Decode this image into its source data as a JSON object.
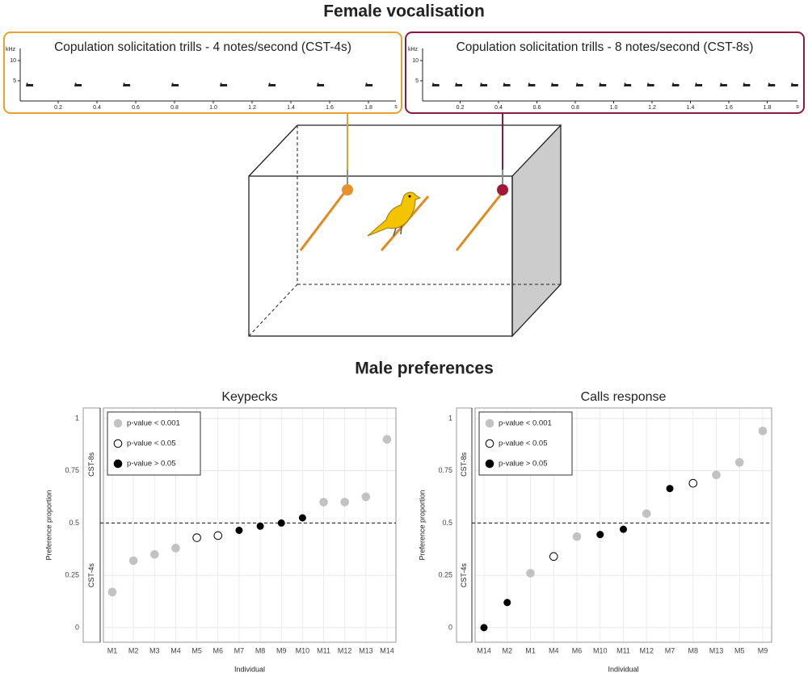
{
  "diagram": {
    "title": "Female vocalisation",
    "panels": [
      {
        "title": "Copulation solicitation trills - 4 notes/second (CST-4s)",
        "color": "#e8a030",
        "y_unit": "kHz",
        "x_unit": "s",
        "yticks": [
          5,
          10
        ],
        "xticks": [
          0.2,
          0.4,
          0.6,
          0.8,
          {
            "value": 1,
            "label": "1.0"
          },
          1.2,
          1.4,
          1.6,
          1.8
        ],
        "note_khz": 4,
        "notes": [
          0.05,
          0.3,
          0.55,
          0.8,
          1.05,
          1.3,
          1.55,
          1.8
        ]
      },
      {
        "title": "Copulation solicitation trills - 8 notes/second (CST-8s)",
        "color": "#8b1a3e",
        "y_unit": "kHz",
        "x_unit": "s",
        "yticks": [
          5,
          10
        ],
        "xticks": [
          0.2,
          0.4,
          0.6,
          0.8,
          {
            "value": 1,
            "label": "1.0"
          },
          1.2,
          1.4,
          1.6,
          1.8
        ],
        "note_khz": 4,
        "notes": [
          0.07,
          0.19,
          0.32,
          0.44,
          0.57,
          0.69,
          0.82,
          0.94,
          1.07,
          1.19,
          1.32,
          1.44,
          1.57,
          1.69,
          1.82,
          1.94
        ]
      }
    ]
  },
  "section_title": "Male preferences",
  "chart_data": [
    {
      "type": "scatter",
      "title": "Keypecks",
      "x_label": "Individual",
      "y_label": "Preference proportion",
      "strip_labels": [
        "CST-8s",
        "CST-4s"
      ],
      "hline": 0.5,
      "grid": true,
      "legend": "top-left",
      "categories": [
        "M1",
        "M2",
        "M3",
        "M4",
        "M5",
        "M6",
        "M7",
        "M8",
        "M9",
        "M10",
        "M11",
        "M12",
        "M13",
        "M14"
      ],
      "ylim": [
        -0.07,
        1.05
      ],
      "yticks": [
        0,
        0.25,
        0.5,
        0.75,
        1
      ],
      "series": [
        {
          "name": "p-value < 0.001",
          "color": "#c2c2c2",
          "fill": "#c2c2c2",
          "values": [
            0.17,
            0.32,
            0.35,
            0.38,
            null,
            null,
            null,
            null,
            null,
            null,
            0.6,
            0.6,
            0.625,
            0.9
          ]
        },
        {
          "name": "p-value < 0.05",
          "color": "#000000",
          "fill": "#ffffff",
          "values": [
            null,
            null,
            null,
            null,
            0.43,
            0.44,
            null,
            null,
            null,
            null,
            null,
            null,
            null,
            null
          ]
        },
        {
          "name": "p-value > 0.05",
          "color": "#000000",
          "fill": "#000000",
          "values": [
            null,
            null,
            null,
            null,
            null,
            null,
            0.465,
            0.485,
            0.5,
            0.525,
            null,
            null,
            null,
            null
          ]
        }
      ]
    },
    {
      "type": "scatter",
      "title": "Calls response",
      "x_label": "Individual",
      "y_label": "Preference proportion",
      "strip_labels": [
        "CST-8s",
        "CST-4s"
      ],
      "hline": 0.5,
      "grid": true,
      "legend": "top-left",
      "categories": [
        "M14",
        "M2",
        "M1",
        "M4",
        "M6",
        "M10",
        "M11",
        "M12",
        "M7",
        "M8",
        "M13",
        "M5",
        "M9"
      ],
      "ylim": [
        -0.07,
        1.05
      ],
      "yticks": [
        0,
        0.25,
        0.5,
        0.75,
        1
      ],
      "series": [
        {
          "name": "p-value < 0.001",
          "color": "#c2c2c2",
          "fill": "#c2c2c2",
          "values": [
            null,
            null,
            0.26,
            null,
            0.435,
            null,
            null,
            0.545,
            null,
            null,
            0.73,
            0.79,
            0.94
          ]
        },
        {
          "name": "p-value < 0.05",
          "color": "#000000",
          "fill": "#ffffff",
          "values": [
            null,
            null,
            null,
            0.34,
            null,
            null,
            null,
            null,
            null,
            0.69,
            null,
            null,
            null
          ]
        },
        {
          "name": "p-value > 0.05",
          "color": "#000000",
          "fill": "#000000",
          "values": [
            0.0,
            0.12,
            null,
            null,
            null,
            0.445,
            0.47,
            null,
            0.665,
            null,
            null,
            null,
            null
          ]
        }
      ]
    }
  ]
}
